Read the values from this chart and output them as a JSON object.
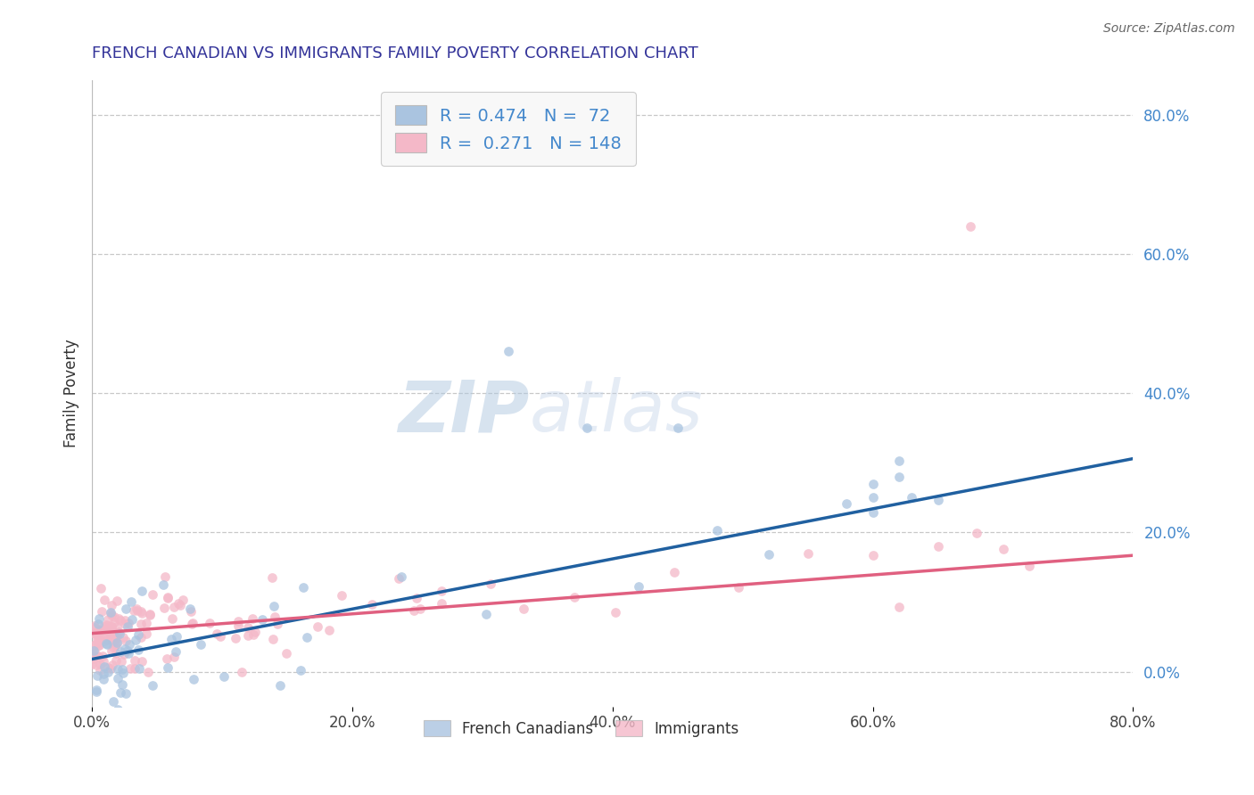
{
  "title": "FRENCH CANADIAN VS IMMIGRANTS FAMILY POVERTY CORRELATION CHART",
  "source": "Source: ZipAtlas.com",
  "ylabel": "Family Poverty",
  "x_min": 0.0,
  "x_max": 0.8,
  "y_min": -0.05,
  "y_max": 0.85,
  "x_ticks": [
    0.0,
    0.2,
    0.4,
    0.6,
    0.8
  ],
  "x_tick_labels": [
    "0.0%",
    "20.0%",
    "40.0%",
    "60.0%",
    "80.0%"
  ],
  "y_tick_labels_right": [
    "0.0%",
    "20.0%",
    "40.0%",
    "60.0%",
    "80.0%"
  ],
  "y_ticks_right": [
    0.0,
    0.2,
    0.4,
    0.6,
    0.8
  ],
  "blue_color": "#aac4e0",
  "pink_color": "#f4b8c8",
  "blue_line_color": "#2060a0",
  "pink_line_color": "#e06080",
  "watermark_zip": "ZIP",
  "watermark_atlas": "atlas",
  "legend_x_label": [
    "French Canadians",
    "Immigrants"
  ],
  "blue_N": 72,
  "pink_N": 148,
  "blue_intercept": 0.018,
  "blue_slope": 0.36,
  "pink_intercept": 0.055,
  "pink_slope": 0.14,
  "title_color": "#333399",
  "background_color": "#ffffff",
  "grid_color": "#c8c8c8",
  "right_tick_color": "#4488cc"
}
